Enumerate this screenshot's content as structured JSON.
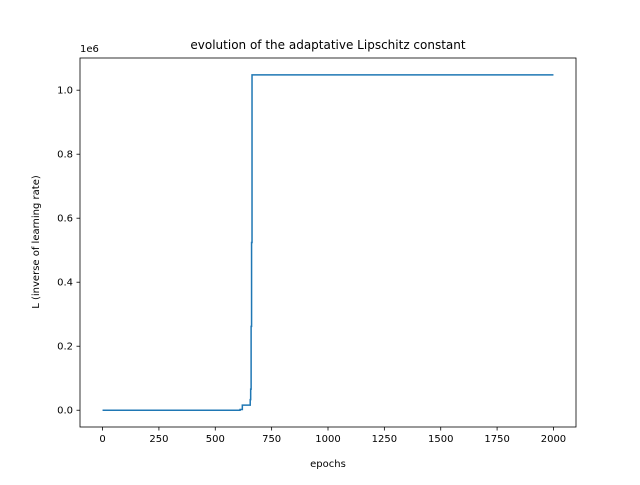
{
  "chart_data": {
    "type": "line",
    "title": "evolution of the adaptative Lipschitz constant",
    "xlabel": "epochs",
    "ylabel": "L (inverse of learning rate)",
    "y_offset_label": "1e6",
    "xlim": [
      -100,
      2100
    ],
    "ylim": [
      -0.0524,
      1.1006
    ],
    "y_scale_multiplier": 1000000,
    "x_ticks": [
      0,
      250,
      500,
      750,
      1000,
      1250,
      1500,
      1750,
      2000
    ],
    "x_tick_labels": [
      "0",
      "250",
      "500",
      "750",
      "1000",
      "1250",
      "1500",
      "1750",
      "2000"
    ],
    "y_ticks": [
      0.0,
      0.2,
      0.4,
      0.6,
      0.8,
      1.0
    ],
    "y_tick_labels": [
      "0.0",
      "0.2",
      "0.4",
      "0.6",
      "0.8",
      "1.0"
    ],
    "grid": false,
    "legend": "none",
    "series": [
      {
        "color": "#1f77b4",
        "step": true,
        "x": [
          0,
          610,
          620,
          655,
          657,
          659,
          661,
          663,
          665,
          2000
        ],
        "y": [
          0.0001,
          0.0021,
          0.016,
          0.033,
          0.066,
          0.262,
          0.524,
          1.048,
          1.048,
          1.048
        ]
      }
    ]
  }
}
